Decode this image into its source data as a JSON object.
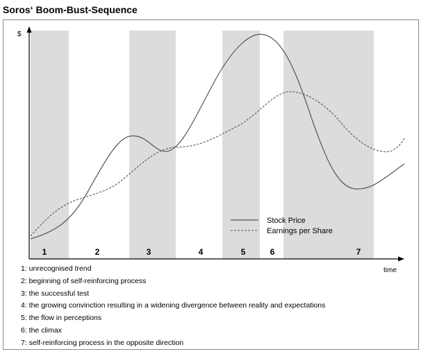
{
  "title": "Soros‘ Boom-Bust-Sequence",
  "axes": {
    "y_label": "$",
    "x_label": "time"
  },
  "colors": {
    "phase_band": "#dcdcdc",
    "line": "#555555",
    "axis": "#000000"
  },
  "phases": [
    {
      "label": "1",
      "shaded": true
    },
    {
      "label": "2",
      "shaded": false
    },
    {
      "label": "3",
      "shaded": true
    },
    {
      "label": "4",
      "shaded": false
    },
    {
      "label": "5",
      "shaded": true
    },
    {
      "label": "6",
      "shaded": true
    },
    {
      "label": "7",
      "shaded": true
    }
  ],
  "legend": [
    {
      "label": "Stock Price",
      "style": "solid"
    },
    {
      "label": "Earnings per Share",
      "style": "dashed"
    }
  ],
  "notes": [
    "1: unrecognised trend",
    "2: beginning of self-reinforcing process",
    "3: the successful test",
    "4: the growing convinction resulting in a widening divergence between reality and expectations",
    "5: the flow in perceptions",
    "6: the climax",
    "7: self-reinforcing process in the opposite direction"
  ]
}
